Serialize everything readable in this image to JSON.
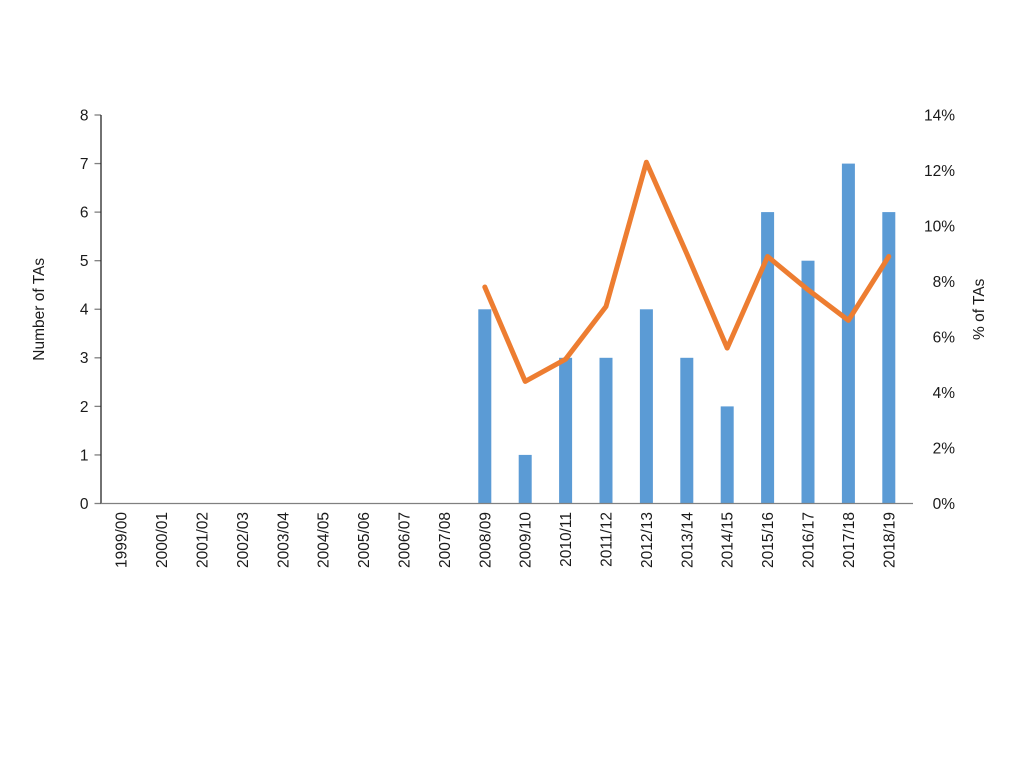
{
  "chart_data": {
    "type": "bar",
    "subtype": "combo-bar-line",
    "title": "",
    "categories": [
      "1999/00",
      "2000/01",
      "2001/02",
      "2002/03",
      "2003/04",
      "2004/05",
      "2005/06",
      "2006/07",
      "2007/08",
      "2008/09",
      "2009/10",
      "2010/11",
      "2011/12",
      "2012/13",
      "2013/14",
      "2014/15",
      "2015/16",
      "2016/17",
      "2017/18",
      "2018/19"
    ],
    "series": [
      {
        "name": "Number of TAs",
        "type": "bar",
        "axis": "left",
        "color": "#5B9BD5",
        "values": [
          null,
          null,
          null,
          null,
          null,
          null,
          null,
          null,
          null,
          4,
          1,
          3,
          3,
          4,
          3,
          2,
          6,
          5,
          7,
          6
        ]
      },
      {
        "name": "% of TAs",
        "type": "line",
        "axis": "right",
        "color": "#ED7D31",
        "values": [
          null,
          null,
          null,
          null,
          null,
          null,
          null,
          null,
          null,
          7.8,
          4.4,
          5.2,
          7.1,
          12.3,
          9.0,
          5.6,
          8.9,
          7.7,
          6.6,
          8.9
        ]
      }
    ],
    "left_axis": {
      "label": "Number of TAs",
      "min": 0,
      "max": 8,
      "step": 1,
      "tick_labels": [
        "0",
        "1",
        "2",
        "3",
        "4",
        "5",
        "6",
        "7",
        "8"
      ]
    },
    "right_axis": {
      "label": "% of TAs",
      "min": 0,
      "max": 14,
      "step": 2,
      "tick_labels": [
        "0%",
        "2%",
        "4%",
        "6%",
        "8%",
        "10%",
        "12%",
        "14%"
      ]
    },
    "x_axis": {
      "tick_rotation_deg": -90
    },
    "grid": false,
    "legend": false,
    "colors": {
      "bar": "#5B9BD5",
      "line": "#ED7D31",
      "axis_line": "#262626",
      "tick_line": "#808080",
      "baseline": "#808080",
      "text": "#1a1a1a",
      "background": "#ffffff"
    }
  }
}
